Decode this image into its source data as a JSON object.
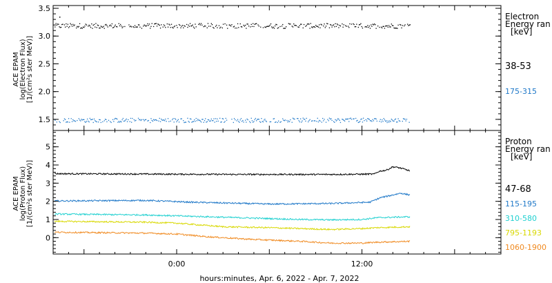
{
  "xlabel": "hours:minutes, Apr.  6, 2022 - Apr.  7, 2022",
  "x_ticks": [
    "0:00",
    "12:00"
  ],
  "x_range_hours": [
    -8,
    21
  ],
  "data_end_hours": 15.1,
  "chart_data": [
    {
      "type": "scatter",
      "panel": "electron",
      "ylabel_lines": [
        "ACE EPAM",
        "log(Electron Flux)",
        "[1/(cm²s ster MeV)]"
      ],
      "ylim": [
        1.3,
        3.55
      ],
      "y_ticks": [
        1.5,
        2.0,
        2.5,
        3.0,
        3.5
      ],
      "y_tick_labels": [
        "1.5",
        "2.0",
        "2.5",
        "3.0",
        "3.5"
      ],
      "legend_title": [
        "Electron",
        "Energy ran",
        "[keV]"
      ],
      "series": [
        {
          "name": "38-53",
          "color": "#000000",
          "level": 3.19,
          "noise": 0.045,
          "start_spike": 3.35
        },
        {
          "name": "175-315",
          "color": "#1f78c8",
          "level": 1.49,
          "noise": 0.04
        }
      ]
    },
    {
      "type": "line",
      "panel": "proton",
      "ylabel_lines": [
        "ACE EPAM",
        "log(Proton Flux)",
        "[1/(cm²s ster MeV)]"
      ],
      "ylim": [
        -0.9,
        5.9
      ],
      "y_ticks": [
        0,
        1,
        2,
        3,
        4,
        5
      ],
      "y_tick_labels": [
        "0",
        "1",
        "2",
        "3",
        "4",
        "5"
      ],
      "legend_title": [
        "Proton",
        "Energy ran",
        "[keV]"
      ],
      "series": [
        {
          "name": "47-68",
          "color": "#000000",
          "profile": [
            [
              -7.9,
              3.52
            ],
            [
              -2,
              3.5
            ],
            [
              4,
              3.48
            ],
            [
              10,
              3.48
            ],
            [
              12.8,
              3.5
            ],
            [
              13.1,
              3.65
            ],
            [
              13.6,
              3.72
            ],
            [
              14,
              3.9
            ],
            [
              14.4,
              3.85
            ],
            [
              15.1,
              3.68
            ]
          ]
        },
        {
          "name": "115-195",
          "color": "#1f78c8",
          "profile": [
            [
              -7.9,
              2.02
            ],
            [
              -2,
              2.05
            ],
            [
              1,
              1.95
            ],
            [
              6,
              1.85
            ],
            [
              10,
              1.88
            ],
            [
              12.5,
              1.95
            ],
            [
              13.2,
              2.2
            ],
            [
              14,
              2.35
            ],
            [
              14.5,
              2.45
            ],
            [
              15.1,
              2.35
            ]
          ]
        },
        {
          "name": "310-580",
          "color": "#20d0d0",
          "profile": [
            [
              -7.9,
              1.3
            ],
            [
              -2,
              1.25
            ],
            [
              0,
              1.2
            ],
            [
              4,
              1.1
            ],
            [
              8,
              1.0
            ],
            [
              10,
              0.98
            ],
            [
              12,
              1.0
            ],
            [
              13,
              1.1
            ],
            [
              15.1,
              1.15
            ]
          ]
        },
        {
          "name": "795-1193",
          "color": "#d8d800",
          "profile": [
            [
              -7.9,
              0.9
            ],
            [
              -2,
              0.85
            ],
            [
              0,
              0.8
            ],
            [
              3,
              0.6
            ],
            [
              6,
              0.55
            ],
            [
              10,
              0.45
            ],
            [
              12,
              0.5
            ],
            [
              13,
              0.55
            ],
            [
              15.1,
              0.6
            ]
          ]
        },
        {
          "name": "1060-1900",
          "color": "#f08a20",
          "profile": [
            [
              -7.9,
              0.3
            ],
            [
              -2,
              0.25
            ],
            [
              0,
              0.2
            ],
            [
              2,
              0.05
            ],
            [
              5,
              -0.1
            ],
            [
              8,
              -0.2
            ],
            [
              10,
              -0.3
            ],
            [
              12,
              -0.3
            ],
            [
              13,
              -0.25
            ],
            [
              15.1,
              -0.2
            ]
          ]
        }
      ]
    }
  ]
}
